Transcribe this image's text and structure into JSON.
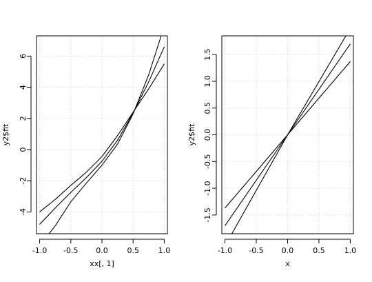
{
  "chart_data": [
    {
      "type": "line",
      "xlabel": "xx[, 1]",
      "ylabel": "y2$fit",
      "xlim": [
        -1.05,
        1.05
      ],
      "ylim": [
        -5.4,
        7.3
      ],
      "xticks": [
        -1.0,
        -0.5,
        0.0,
        0.5,
        1.0
      ],
      "xtick_labels": [
        "-1.0",
        "-0.5",
        "0.0",
        "0.5",
        "1.0"
      ],
      "yticks": [
        -4,
        -2,
        0,
        2,
        4,
        6
      ],
      "ytick_labels": [
        "-4",
        "-2",
        "0",
        "2",
        "4",
        "6"
      ],
      "grid": true,
      "line_color": "#000000",
      "series": [
        {
          "x": [
            -1.0,
            -0.75,
            -0.5,
            -0.25,
            0.0,
            0.25,
            0.5,
            0.75,
            1.0
          ],
          "y": [
            -4.0,
            -3.2,
            -2.3,
            -1.45,
            -0.45,
            0.9,
            2.4,
            3.9,
            5.5
          ]
        },
        {
          "x": [
            -1.0,
            -0.75,
            -0.5,
            -0.25,
            0.0,
            0.25,
            0.5,
            0.75,
            1.0
          ],
          "y": [
            -4.8,
            -3.75,
            -2.75,
            -1.8,
            -0.75,
            0.6,
            2.35,
            4.35,
            6.6
          ]
        },
        {
          "x": [
            -0.85,
            -0.75,
            -0.5,
            -0.25,
            0.0,
            0.25,
            0.5,
            0.75,
            0.95
          ],
          "y": [
            -5.4,
            -4.9,
            -3.35,
            -2.15,
            -1.0,
            0.35,
            2.3,
            4.8,
            7.3
          ]
        }
      ]
    },
    {
      "type": "line",
      "xlabel": "x",
      "ylabel": "y2$fit",
      "xlim": [
        -1.05,
        1.05
      ],
      "ylim": [
        -1.85,
        1.85
      ],
      "xticks": [
        -1.0,
        -0.5,
        0.0,
        0.5,
        1.0
      ],
      "xtick_labels": [
        "-1.0",
        "-0.5",
        "0.0",
        "0.5",
        "1.0"
      ],
      "yticks": [
        -1.5,
        -1.0,
        -0.5,
        0.0,
        0.5,
        1.0,
        1.5
      ],
      "ytick_labels": [
        "-1.5",
        "-1.0",
        "-0.5",
        "0.0",
        "0.5",
        "1.0",
        "1.5"
      ],
      "grid": true,
      "line_color": "#000000",
      "series": [
        {
          "x": [
            -1.0,
            0.0,
            1.0
          ],
          "y": [
            -1.37,
            0.0,
            1.37
          ]
        },
        {
          "x": [
            -1.0,
            0.0,
            1.0
          ],
          "y": [
            -1.7,
            0.0,
            1.7
          ]
        },
        {
          "x": [
            -0.89,
            0.0,
            0.93
          ],
          "y": [
            -1.85,
            0.0,
            1.85
          ]
        }
      ]
    }
  ]
}
